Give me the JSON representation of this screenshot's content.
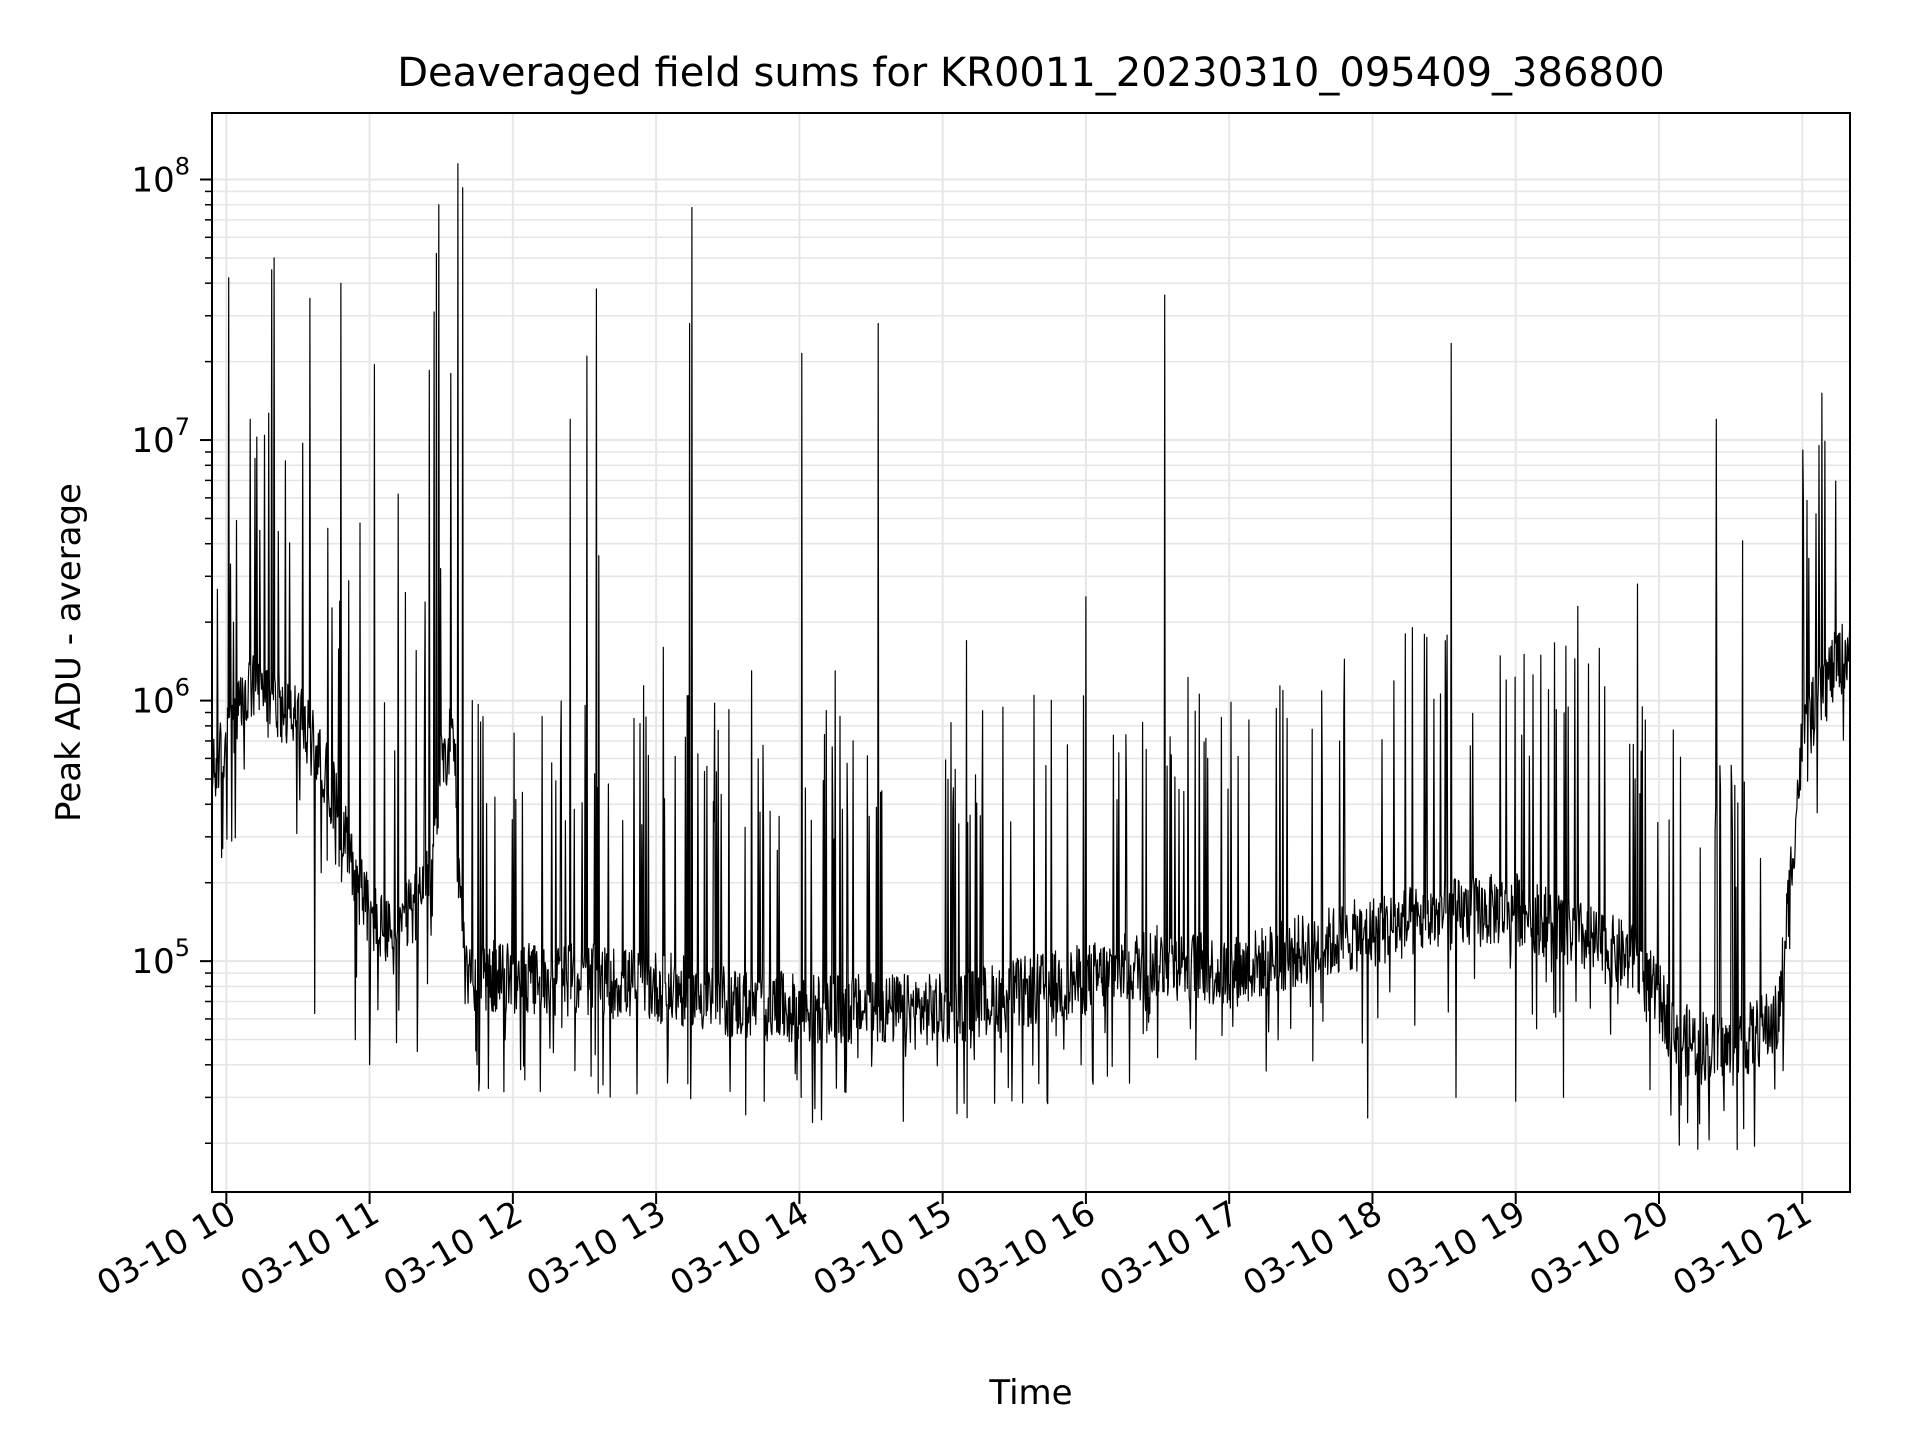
{
  "chart_data": {
    "type": "line",
    "title": "Deaveraged field sums for KR0011_20230310_095409_386800",
    "xlabel": "Time",
    "ylabel": "Peak ADU - average",
    "x_scale": "time",
    "y_scale": "log",
    "xlim": [
      "2023-03-10 09:54",
      "2023-03-10 21:20"
    ],
    "ylim": [
      13000,
      180000000
    ],
    "grid": true,
    "legend": "none",
    "x_ticks": [
      "03-10 10",
      "03-10 11",
      "03-10 12",
      "03-10 13",
      "03-10 14",
      "03-10 15",
      "03-10 16",
      "03-10 17",
      "03-10 18",
      "03-10 19",
      "03-10 20",
      "03-10 21"
    ],
    "y_ticks": [
      {
        "value": 100000,
        "base": "10",
        "exp": "5"
      },
      {
        "value": 1000000,
        "base": "10",
        "exp": "6"
      },
      {
        "value": 10000000,
        "base": "10",
        "exp": "7"
      },
      {
        "value": 100000000,
        "base": "10",
        "exp": "8"
      }
    ],
    "line_color": "#000000",
    "grid_color": "#e6e6e6",
    "series": [
      {
        "baseline": [
          [
            "2023-03-10 09:54",
            500000
          ],
          [
            "2023-03-10 10:00",
            700000
          ],
          [
            "2023-03-10 10:10",
            1100000
          ],
          [
            "2023-03-10 10:20",
            1000000
          ],
          [
            "2023-03-10 10:30",
            850000
          ],
          [
            "2023-03-10 10:40",
            600000
          ],
          [
            "2023-03-10 10:50",
            300000
          ],
          [
            "2023-03-10 11:00",
            150000
          ],
          [
            "2023-03-10 11:10",
            120000
          ],
          [
            "2023-03-10 11:25",
            200000
          ],
          [
            "2023-03-10 11:30",
            550000
          ],
          [
            "2023-03-10 11:35",
            800000
          ],
          [
            "2023-03-10 11:40",
            90000
          ],
          [
            "2023-03-10 12:00",
            85000
          ],
          [
            "2023-03-10 12:30",
            85000
          ],
          [
            "2023-03-10 13:00",
            80000
          ],
          [
            "2023-03-10 13:30",
            70000
          ],
          [
            "2023-03-10 14:00",
            65000
          ],
          [
            "2023-03-10 15:00",
            65000
          ],
          [
            "2023-03-10 16:00",
            85000
          ],
          [
            "2023-03-10 16:30",
            100000
          ],
          [
            "2023-03-10 17:00",
            90000
          ],
          [
            "2023-03-10 17:30",
            110000
          ],
          [
            "2023-03-10 18:00",
            130000
          ],
          [
            "2023-03-10 18:30",
            150000
          ],
          [
            "2023-03-10 19:00",
            160000
          ],
          [
            "2023-03-10 19:30",
            120000
          ],
          [
            "2023-03-10 19:50",
            100000
          ],
          [
            "2023-03-10 20:10",
            50000
          ],
          [
            "2023-03-10 20:30",
            45000
          ],
          [
            "2023-03-10 20:50",
            60000
          ],
          [
            "2023-03-10 21:00",
            700000
          ],
          [
            "2023-03-10 21:10",
            1200000
          ],
          [
            "2023-03-10 21:20",
            1600000
          ]
        ],
        "peaks": [
          [
            "2023-03-10 10:01",
            42000000
          ],
          [
            "2023-03-10 10:03",
            2000000
          ],
          [
            "2023-03-10 10:10",
            12000000
          ],
          [
            "2023-03-10 10:12",
            8500000
          ],
          [
            "2023-03-10 10:14",
            4500000
          ],
          [
            "2023-03-10 10:19",
            45000000
          ],
          [
            "2023-03-10 10:20",
            50000000
          ],
          [
            "2023-03-10 10:35",
            35000000
          ],
          [
            "2023-03-10 10:48",
            40000000
          ],
          [
            "2023-03-10 10:56",
            4800000
          ],
          [
            "2023-03-10 11:02",
            19500000
          ],
          [
            "2023-03-10 11:12",
            6200000
          ],
          [
            "2023-03-10 11:15",
            2600000
          ],
          [
            "2023-03-10 11:25",
            18500000
          ],
          [
            "2023-03-10 11:27",
            31000000
          ],
          [
            "2023-03-10 11:28",
            52000000
          ],
          [
            "2023-03-10 11:29",
            80000000
          ],
          [
            "2023-03-10 11:34",
            18000000
          ],
          [
            "2023-03-10 11:37",
            115000000
          ],
          [
            "2023-03-10 11:39",
            93000000
          ],
          [
            "2023-03-10 11:43",
            1000000
          ],
          [
            "2023-03-10 12:24",
            12000000
          ],
          [
            "2023-03-10 12:31",
            21000000
          ],
          [
            "2023-03-10 12:35",
            38000000
          ],
          [
            "2023-03-10 12:36",
            3600000
          ],
          [
            "2023-03-10 13:03",
            1600000
          ],
          [
            "2023-03-10 13:14",
            28000000
          ],
          [
            "2023-03-10 13:15",
            78000000
          ],
          [
            "2023-03-10 13:40",
            1300000
          ],
          [
            "2023-03-10 14:01",
            21500000
          ],
          [
            "2023-03-10 14:15",
            1300000
          ],
          [
            "2023-03-10 14:33",
            28000000
          ],
          [
            "2023-03-10 15:10",
            1700000
          ],
          [
            "2023-03-10 16:00",
            2500000
          ],
          [
            "2023-03-10 16:33",
            36000000
          ],
          [
            "2023-03-10 18:33",
            23500000
          ],
          [
            "2023-03-10 18:56",
            1200000
          ],
          [
            "2023-03-10 19:26",
            2300000
          ],
          [
            "2023-03-10 19:51",
            2800000
          ],
          [
            "2023-03-10 20:24",
            12000000
          ],
          [
            "2023-03-10 20:35",
            4100000
          ]
        ],
        "dips": [
          [
            "2023-03-10 09:58",
            250000
          ],
          [
            "2023-03-10 10:37",
            63000
          ],
          [
            "2023-03-10 10:54",
            50000
          ],
          [
            "2023-03-10 11:00",
            40000
          ],
          [
            "2023-03-10 11:20",
            45000
          ],
          [
            "2023-03-10 11:45",
            40000
          ],
          [
            "2023-03-10 12:05",
            35000
          ],
          [
            "2023-03-10 12:26",
            38000
          ],
          [
            "2023-03-10 13:59",
            35000
          ],
          [
            "2023-03-10 15:58",
            40000
          ],
          [
            "2023-03-10 17:58",
            25000
          ],
          [
            "2023-03-10 18:35",
            30000
          ],
          [
            "2023-03-10 19:00",
            29000
          ],
          [
            "2023-03-10 19:20",
            30000
          ],
          [
            "2023-03-10 20:12",
            24000
          ],
          [
            "2023-03-10 20:40",
            19500
          ],
          [
            "2023-03-10 20:52",
            38000
          ]
        ]
      }
    ]
  }
}
